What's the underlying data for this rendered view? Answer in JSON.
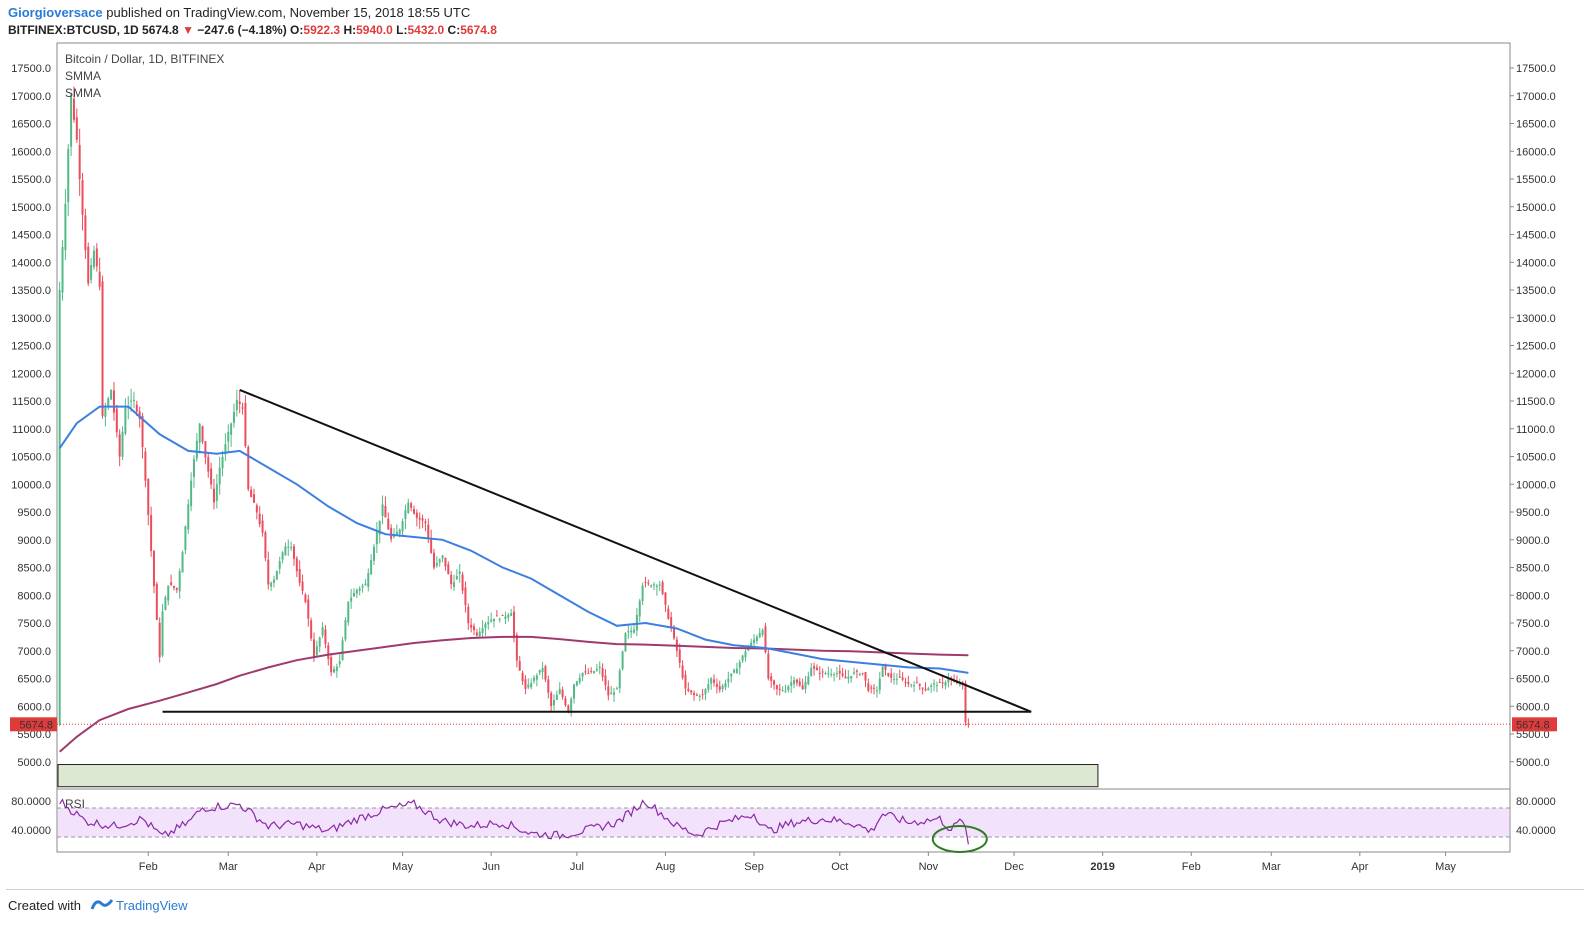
{
  "header": {
    "author": "Giorgioversace",
    "published": " published on TradingView.com, November 15, 2018 18:55 UTC",
    "symbol": "BITFINEX:BTCUSD, 1D",
    "last": "5674.8",
    "change_arrow": "▼",
    "change": "−247.6 (−4.18%)",
    "o_label": "O:",
    "o_val": "5922.3",
    "h_label": "H:",
    "h_val": "5940.0",
    "l_label": "L:",
    "l_val": "5432.0",
    "c_label": "C:",
    "c_val": "5674.8"
  },
  "legend": {
    "title": "Bitcoin / Dollar, 1D, BITFINEX",
    "ind1": "SMMA",
    "ind2": "SMMA",
    "rsi": "RSI"
  },
  "footer": {
    "created": "Created with",
    "brand": "TradingView"
  },
  "colors": {
    "up": "#53b987",
    "down": "#eb4d5c",
    "smma_fast": "#3d7fe0",
    "smma_slow": "#a03a6e",
    "rsi": "#8a2aa6",
    "rsi_band": "#f3e2fb",
    "zone": "#dde8d2",
    "price_line": "#e03b3b"
  },
  "chart_data": {
    "type": "candlestick",
    "title": "Bitcoin / Dollar, 1D, BITFINEX",
    "last_price": 5674.8,
    "price_ticks": [
      "17500.0",
      "17000.0",
      "16500.0",
      "16000.0",
      "15500.0",
      "15000.0",
      "14500.0",
      "14000.0",
      "13500.0",
      "13000.0",
      "12500.0",
      "12000.0",
      "11500.0",
      "11000.0",
      "10500.0",
      "10000.0",
      "9500.0",
      "9000.0",
      "8500.0",
      "8000.0",
      "7500.0",
      "7000.0",
      "6500.0",
      "6000.0",
      "5500.0",
      "5000.0"
    ],
    "x_ticks": [
      "Feb",
      "Mar",
      "Apr",
      "May",
      "Jun",
      "Jul",
      "Aug",
      "Sep",
      "Oct",
      "Nov",
      "Dec",
      "2019",
      "Feb",
      "Mar",
      "Apr",
      "May"
    ],
    "rsi_ticks": [
      "80.0000",
      "40.0000"
    ],
    "rsi_band": [
      30,
      70
    ],
    "trendlines": [
      {
        "name": "descending resistance",
        "from": [
          "2018-03-05",
          11700
        ],
        "to": [
          "2018-12-07",
          5900
        ]
      },
      {
        "name": "horizontal support",
        "from": [
          "2018-02-06",
          5900
        ],
        "to": [
          "2018-12-07",
          5900
        ]
      }
    ],
    "support_zone": {
      "from": "2018-01-01",
      "to": "2018-12-31",
      "low": 4550,
      "high": 4950
    },
    "price_path": [
      [
        "2018-01-01",
        13500
      ],
      [
        "2018-01-03",
        15100
      ],
      [
        "2018-01-05",
        17000
      ],
      [
        "2018-01-07",
        16200
      ],
      [
        "2018-01-09",
        14900
      ],
      [
        "2018-01-11",
        13600
      ],
      [
        "2018-01-13",
        14200
      ],
      [
        "2018-01-15",
        13600
      ],
      [
        "2018-01-16",
        11200
      ],
      [
        "2018-01-19",
        11700
      ],
      [
        "2018-01-22",
        10500
      ],
      [
        "2018-01-24",
        11400
      ],
      [
        "2018-01-27",
        11500
      ],
      [
        "2018-01-29",
        11200
      ],
      [
        "2018-01-31",
        10100
      ],
      [
        "2018-02-02",
        8800
      ],
      [
        "2018-02-05",
        6900
      ],
      [
        "2018-02-06",
        7700
      ],
      [
        "2018-02-08",
        8200
      ],
      [
        "2018-02-11",
        8100
      ],
      [
        "2018-02-13",
        8800
      ],
      [
        "2018-02-16",
        10100
      ],
      [
        "2018-02-19",
        11100
      ],
      [
        "2018-02-21",
        10500
      ],
      [
        "2018-02-24",
        9700
      ],
      [
        "2018-02-26",
        10300
      ],
      [
        "2018-03-01",
        10900
      ],
      [
        "2018-03-04",
        11500
      ],
      [
        "2018-03-06",
        11400
      ],
      [
        "2018-03-08",
        9900
      ],
      [
        "2018-03-11",
        9500
      ],
      [
        "2018-03-13",
        9100
      ],
      [
        "2018-03-15",
        8200
      ],
      [
        "2018-03-17",
        8300
      ],
      [
        "2018-03-19",
        8600
      ],
      [
        "2018-03-21",
        8900
      ],
      [
        "2018-03-23",
        8900
      ],
      [
        "2018-03-26",
        8200
      ],
      [
        "2018-03-28",
        7900
      ],
      [
        "2018-03-31",
        6900
      ],
      [
        "2018-04-03",
        7400
      ],
      [
        "2018-04-06",
        6600
      ],
      [
        "2018-04-09",
        6800
      ],
      [
        "2018-04-12",
        7900
      ],
      [
        "2018-04-15",
        8100
      ],
      [
        "2018-04-18",
        8200
      ],
      [
        "2018-04-21",
        8900
      ],
      [
        "2018-04-24",
        9600
      ],
      [
        "2018-04-27",
        9000
      ],
      [
        "2018-04-30",
        9200
      ],
      [
        "2018-05-03",
        9700
      ],
      [
        "2018-05-06",
        9400
      ],
      [
        "2018-05-09",
        9300
      ],
      [
        "2018-05-12",
        8500
      ],
      [
        "2018-05-15",
        8700
      ],
      [
        "2018-05-18",
        8200
      ],
      [
        "2018-05-21",
        8400
      ],
      [
        "2018-05-24",
        7500
      ],
      [
        "2018-05-27",
        7300
      ],
      [
        "2018-05-30",
        7500
      ],
      [
        "2018-06-02",
        7600
      ],
      [
        "2018-06-05",
        7600
      ],
      [
        "2018-06-08",
        7700
      ],
      [
        "2018-06-10",
        6800
      ],
      [
        "2018-06-13",
        6300
      ],
      [
        "2018-06-16",
        6500
      ],
      [
        "2018-06-19",
        6700
      ],
      [
        "2018-06-22",
        6000
      ],
      [
        "2018-06-25",
        6300
      ],
      [
        "2018-06-28",
        5900
      ],
      [
        "2018-06-30",
        6400
      ],
      [
        "2018-07-03",
        6600
      ],
      [
        "2018-07-06",
        6600
      ],
      [
        "2018-07-09",
        6700
      ],
      [
        "2018-07-12",
        6200
      ],
      [
        "2018-07-15",
        6300
      ],
      [
        "2018-07-18",
        7300
      ],
      [
        "2018-07-21",
        7400
      ],
      [
        "2018-07-24",
        8200
      ],
      [
        "2018-07-27",
        8200
      ],
      [
        "2018-07-30",
        8200
      ],
      [
        "2018-08-02",
        7600
      ],
      [
        "2018-08-05",
        7000
      ],
      [
        "2018-08-08",
        6300
      ],
      [
        "2018-08-11",
        6200
      ],
      [
        "2018-08-14",
        6200
      ],
      [
        "2018-08-17",
        6500
      ],
      [
        "2018-08-20",
        6300
      ],
      [
        "2018-08-23",
        6500
      ],
      [
        "2018-08-26",
        6700
      ],
      [
        "2018-08-29",
        7000
      ],
      [
        "2018-09-01",
        7200
      ],
      [
        "2018-09-04",
        7400
      ],
      [
        "2018-09-06",
        6500
      ],
      [
        "2018-09-09",
        6300
      ],
      [
        "2018-09-12",
        6300
      ],
      [
        "2018-09-15",
        6500
      ],
      [
        "2018-09-18",
        6300
      ],
      [
        "2018-09-21",
        6700
      ],
      [
        "2018-09-24",
        6600
      ],
      [
        "2018-09-27",
        6600
      ],
      [
        "2018-09-30",
        6600
      ],
      [
        "2018-10-03",
        6500
      ],
      [
        "2018-10-06",
        6600
      ],
      [
        "2018-10-09",
        6600
      ],
      [
        "2018-10-11",
        6300
      ],
      [
        "2018-10-14",
        6300
      ],
      [
        "2018-10-16",
        6700
      ],
      [
        "2018-10-19",
        6500
      ],
      [
        "2018-10-22",
        6500
      ],
      [
        "2018-10-25",
        6400
      ],
      [
        "2018-10-28",
        6400
      ],
      [
        "2018-10-31",
        6300
      ],
      [
        "2018-11-03",
        6400
      ],
      [
        "2018-11-06",
        6400
      ],
      [
        "2018-11-08",
        6500
      ],
      [
        "2018-11-11",
        6400
      ],
      [
        "2018-11-13",
        6400
      ],
      [
        "2018-11-14",
        5700
      ],
      [
        "2018-11-15",
        5675
      ]
    ],
    "smma_fast": [
      [
        "2018-01-01",
        10650
      ],
      [
        "2018-01-07",
        11100
      ],
      [
        "2018-01-15",
        11400
      ],
      [
        "2018-01-25",
        11400
      ],
      [
        "2018-02-05",
        10900
      ],
      [
        "2018-02-15",
        10600
      ],
      [
        "2018-02-25",
        10550
      ],
      [
        "2018-03-05",
        10600
      ],
      [
        "2018-03-15",
        10300
      ],
      [
        "2018-03-25",
        10000
      ],
      [
        "2018-04-05",
        9600
      ],
      [
        "2018-04-15",
        9300
      ],
      [
        "2018-04-25",
        9100
      ],
      [
        "2018-05-05",
        9050
      ],
      [
        "2018-05-15",
        9000
      ],
      [
        "2018-05-25",
        8800
      ],
      [
        "2018-06-05",
        8500
      ],
      [
        "2018-06-15",
        8300
      ],
      [
        "2018-06-25",
        8000
      ],
      [
        "2018-07-05",
        7700
      ],
      [
        "2018-07-15",
        7450
      ],
      [
        "2018-07-25",
        7500
      ],
      [
        "2018-08-05",
        7400
      ],
      [
        "2018-08-15",
        7200
      ],
      [
        "2018-08-25",
        7100
      ],
      [
        "2018-09-05",
        7050
      ],
      [
        "2018-09-15",
        6950
      ],
      [
        "2018-09-25",
        6850
      ],
      [
        "2018-10-05",
        6800
      ],
      [
        "2018-10-15",
        6750
      ],
      [
        "2018-10-25",
        6700
      ],
      [
        "2018-11-05",
        6680
      ],
      [
        "2018-11-15",
        6600
      ]
    ],
    "smma_slow": [
      [
        "2018-01-01",
        5180
      ],
      [
        "2018-01-07",
        5450
      ],
      [
        "2018-01-15",
        5750
      ],
      [
        "2018-01-25",
        5950
      ],
      [
        "2018-02-05",
        6100
      ],
      [
        "2018-02-15",
        6250
      ],
      [
        "2018-02-25",
        6400
      ],
      [
        "2018-03-05",
        6550
      ],
      [
        "2018-03-15",
        6700
      ],
      [
        "2018-03-25",
        6830
      ],
      [
        "2018-04-05",
        6930
      ],
      [
        "2018-04-15",
        7000
      ],
      [
        "2018-04-25",
        7070
      ],
      [
        "2018-05-05",
        7140
      ],
      [
        "2018-05-15",
        7190
      ],
      [
        "2018-05-25",
        7230
      ],
      [
        "2018-06-05",
        7250
      ],
      [
        "2018-06-15",
        7250
      ],
      [
        "2018-06-25",
        7210
      ],
      [
        "2018-07-05",
        7160
      ],
      [
        "2018-07-15",
        7120
      ],
      [
        "2018-07-25",
        7110
      ],
      [
        "2018-08-05",
        7090
      ],
      [
        "2018-08-15",
        7070
      ],
      [
        "2018-08-25",
        7050
      ],
      [
        "2018-09-05",
        7040
      ],
      [
        "2018-09-15",
        7020
      ],
      [
        "2018-09-25",
        7000
      ],
      [
        "2018-10-05",
        6990
      ],
      [
        "2018-10-15",
        6970
      ],
      [
        "2018-10-25",
        6950
      ],
      [
        "2018-11-05",
        6930
      ],
      [
        "2018-11-15",
        6920
      ]
    ],
    "rsi": [
      [
        "2018-01-01",
        80
      ],
      [
        "2018-01-10",
        52
      ],
      [
        "2018-01-20",
        45
      ],
      [
        "2018-01-30",
        55
      ],
      [
        "2018-02-06",
        30
      ],
      [
        "2018-02-15",
        50
      ],
      [
        "2018-02-20",
        70
      ],
      [
        "2018-03-05",
        75
      ],
      [
        "2018-03-15",
        45
      ],
      [
        "2018-03-25",
        48
      ],
      [
        "2018-04-05",
        38
      ],
      [
        "2018-04-15",
        55
      ],
      [
        "2018-04-25",
        68
      ],
      [
        "2018-05-05",
        75
      ],
      [
        "2018-05-15",
        52
      ],
      [
        "2018-05-25",
        45
      ],
      [
        "2018-06-05",
        50
      ],
      [
        "2018-06-15",
        35
      ],
      [
        "2018-06-25",
        32
      ],
      [
        "2018-07-05",
        40
      ],
      [
        "2018-07-15",
        50
      ],
      [
        "2018-07-25",
        80
      ],
      [
        "2018-08-05",
        45
      ],
      [
        "2018-08-12",
        33
      ],
      [
        "2018-08-20",
        48
      ],
      [
        "2018-09-01",
        62
      ],
      [
        "2018-09-06",
        38
      ],
      [
        "2018-09-15",
        50
      ],
      [
        "2018-09-25",
        55
      ],
      [
        "2018-10-05",
        50
      ],
      [
        "2018-10-12",
        38
      ],
      [
        "2018-10-16",
        62
      ],
      [
        "2018-10-25",
        50
      ],
      [
        "2018-11-05",
        55
      ],
      [
        "2018-11-09",
        40
      ],
      [
        "2018-11-13",
        55
      ],
      [
        "2018-11-15",
        20
      ]
    ]
  }
}
